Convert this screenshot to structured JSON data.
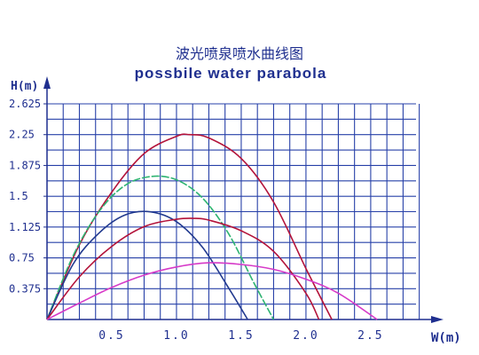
{
  "chart_data": {
    "type": "line",
    "title": "波光喷泉喷水曲线图",
    "subtitle": "possbile water parabola",
    "xlabel": "W(m)",
    "ylabel": "H(m)",
    "xlim": [
      0,
      2.85
    ],
    "ylim": [
      0,
      2.625
    ],
    "x_tick_labels": [
      {
        "value": 0.5,
        "label": "0.5"
      },
      {
        "value": 1.0,
        "label": "1.0"
      },
      {
        "value": 1.5,
        "label": "1.5"
      },
      {
        "value": 2.0,
        "label": "2.0"
      },
      {
        "value": 2.5,
        "label": "2.5"
      }
    ],
    "y_tick_labels": [
      {
        "value": 0.375,
        "label": "0.375"
      },
      {
        "value": 0.75,
        "label": "0.75"
      },
      {
        "value": 1.125,
        "label": "1.125"
      },
      {
        "value": 1.5,
        "label": "1.5"
      },
      {
        "value": 1.875,
        "label": "1.875"
      },
      {
        "value": 2.25,
        "label": "2.25"
      },
      {
        "value": 2.625,
        "label": "2.625"
      }
    ],
    "grid": true,
    "grid_x_step": 0.125,
    "grid_y_step": 0.1875,
    "series": [
      {
        "color": "#b3133a",
        "dashed": false,
        "x": [
          0,
          0.25,
          0.5,
          0.75,
          1.0,
          1.1,
          1.25,
          1.5,
          1.75,
          2.0,
          2.2
        ],
        "values": [
          0,
          0.91,
          1.55,
          2.02,
          2.23,
          2.25,
          2.21,
          1.96,
          1.43,
          0.62,
          0
        ]
      },
      {
        "color": "#2db371",
        "dashed": true,
        "x": [
          0,
          0.2,
          0.4,
          0.6,
          0.8,
          1.0,
          1.2,
          1.4,
          1.6,
          1.75
        ],
        "values": [
          0,
          0.77,
          1.31,
          1.63,
          1.74,
          1.7,
          1.48,
          1.05,
          0.44,
          0
        ]
      },
      {
        "color": "#223a8f",
        "dashed": false,
        "x": [
          0,
          0.2,
          0.4,
          0.6,
          0.8,
          1.0,
          1.2,
          1.4,
          1.55
        ],
        "values": [
          0,
          0.67,
          1.05,
          1.27,
          1.31,
          1.19,
          0.88,
          0.39,
          0
        ]
      },
      {
        "color": "#b3133a",
        "dashed": false,
        "x": [
          0,
          0.25,
          0.5,
          0.75,
          1.0,
          1.15,
          1.25,
          1.5,
          1.75,
          2.0,
          2.1
        ],
        "values": [
          0,
          0.52,
          0.89,
          1.13,
          1.22,
          1.23,
          1.21,
          1.08,
          0.83,
          0.32,
          0
        ]
      },
      {
        "color": "#d63ac8",
        "dashed": false,
        "x": [
          0,
          0.25,
          0.5,
          0.75,
          1.0,
          1.25,
          1.5,
          1.75,
          2.0,
          2.25,
          2.55
        ],
        "values": [
          0,
          0.2,
          0.39,
          0.54,
          0.64,
          0.69,
          0.67,
          0.61,
          0.49,
          0.32,
          0
        ]
      }
    ]
  }
}
